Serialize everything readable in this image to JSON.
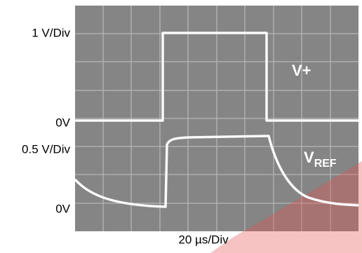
{
  "labels": {
    "scale_top": "1 V/Div",
    "zero_top": "0V",
    "scale_bottom": "0.5 V/Div",
    "zero_bottom": "0V"
  },
  "traces": {
    "v_plus": "V+",
    "v_ref": {
      "main": "V",
      "sub": "REF"
    }
  },
  "time_scale": "20 µs/Div"
}
